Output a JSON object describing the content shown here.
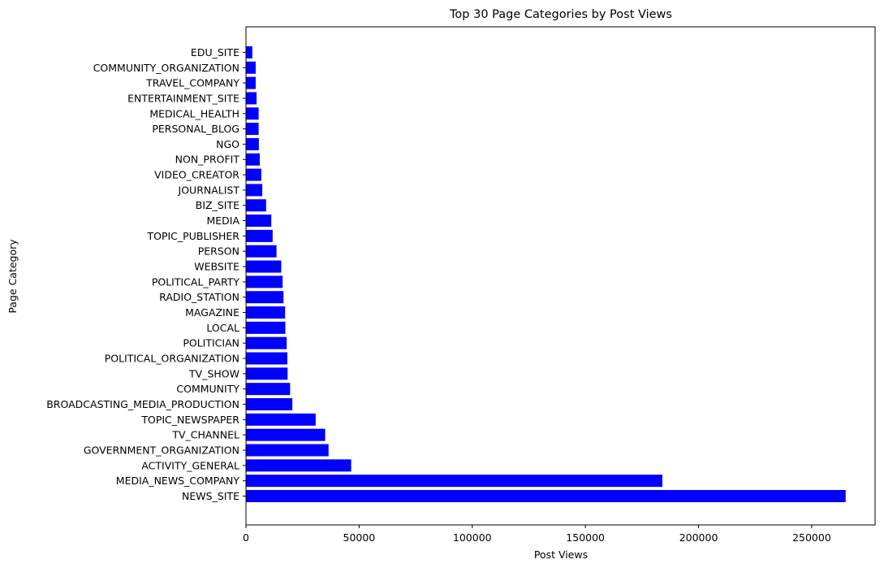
{
  "chart_data": {
    "type": "bar",
    "orientation": "horizontal",
    "title": "Top 30 Page Categories by Post Views",
    "xlabel": "Post Views",
    "ylabel": "Page Category",
    "xlim": [
      0,
      278000
    ],
    "xticks": [
      0,
      50000,
      100000,
      150000,
      200000,
      250000
    ],
    "xtick_labels": [
      "0",
      "50000",
      "100000",
      "150000",
      "200000",
      "250000"
    ],
    "bar_color": "#0000ff",
    "grid": false,
    "legend": "none",
    "categories": [
      "NEWS_SITE",
      "MEDIA_NEWS_COMPANY",
      "ACTIVITY_GENERAL",
      "GOVERNMENT_ORGANIZATION",
      "TV_CHANNEL",
      "TOPIC_NEWSPAPER",
      "BROADCASTING_MEDIA_PRODUCTION",
      "COMMUNITY",
      "TV_SHOW",
      "POLITICAL_ORGANIZATION",
      "POLITICIAN",
      "LOCAL",
      "MAGAZINE",
      "RADIO_STATION",
      "POLITICAL_PARTY",
      "WEBSITE",
      "PERSON",
      "TOPIC_PUBLISHER",
      "MEDIA",
      "BIZ_SITE",
      "JOURNALIST",
      "VIDEO_CREATOR",
      "NON_PROFIT",
      "NGO",
      "PERSONAL_BLOG",
      "MEDICAL_HEALTH",
      "ENTERTAINMENT_SITE",
      "TRAVEL_COMPANY",
      "COMMUNITY_ORGANIZATION",
      "EDU_SITE"
    ],
    "values": [
      265000,
      184000,
      46500,
      36500,
      35000,
      30800,
      20500,
      19500,
      18400,
      18300,
      18000,
      17400,
      17300,
      16600,
      16200,
      15600,
      13500,
      11800,
      11200,
      8900,
      7200,
      6800,
      6100,
      5700,
      5600,
      5600,
      4700,
      4300,
      4300,
      2800
    ]
  }
}
